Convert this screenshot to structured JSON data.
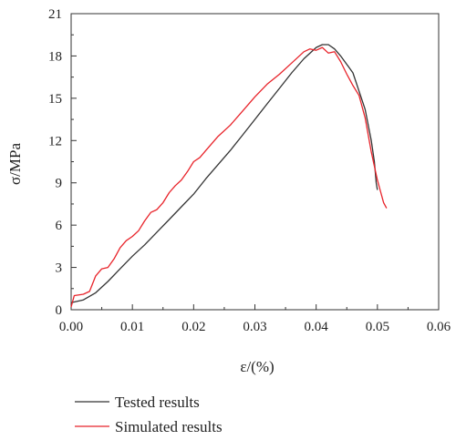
{
  "chart_data": {
    "type": "line",
    "title": "",
    "xlabel": "ε/(%)",
    "ylabel": "σ/MPa",
    "xlim": [
      0,
      0.06
    ],
    "ylim": [
      0,
      21
    ],
    "x_ticks": [
      0.0,
      0.01,
      0.02,
      0.03,
      0.04,
      0.05,
      0.06
    ],
    "x_tick_labels": [
      "0.00",
      "0.01",
      "0.02",
      "0.03",
      "0.04",
      "0.05",
      "0.06"
    ],
    "y_ticks": [
      0,
      3,
      6,
      9,
      12,
      15,
      18,
      21
    ],
    "y_tick_labels": [
      "0",
      "3",
      "6",
      "9",
      "12",
      "15",
      "18",
      "21"
    ],
    "grid": false,
    "legend_position": "bottom-left, below plot",
    "series": [
      {
        "name": "Tested results",
        "color": "#333333",
        "points": [
          [
            0.0,
            0.5
          ],
          [
            0.002,
            0.7
          ],
          [
            0.004,
            1.2
          ],
          [
            0.006,
            2.0
          ],
          [
            0.008,
            2.9
          ],
          [
            0.01,
            3.8
          ],
          [
            0.012,
            4.6
          ],
          [
            0.014,
            5.5
          ],
          [
            0.016,
            6.4
          ],
          [
            0.018,
            7.3
          ],
          [
            0.02,
            8.2
          ],
          [
            0.022,
            9.3
          ],
          [
            0.024,
            10.3
          ],
          [
            0.026,
            11.3
          ],
          [
            0.028,
            12.4
          ],
          [
            0.03,
            13.5
          ],
          [
            0.032,
            14.6
          ],
          [
            0.034,
            15.7
          ],
          [
            0.036,
            16.8
          ],
          [
            0.038,
            17.8
          ],
          [
            0.04,
            18.6
          ],
          [
            0.041,
            18.8
          ],
          [
            0.042,
            18.8
          ],
          [
            0.043,
            18.5
          ],
          [
            0.044,
            18.0
          ],
          [
            0.045,
            17.4
          ],
          [
            0.046,
            16.8
          ],
          [
            0.047,
            15.5
          ],
          [
            0.048,
            14.2
          ],
          [
            0.049,
            12.0
          ],
          [
            0.0495,
            10.5
          ],
          [
            0.0498,
            9.0
          ],
          [
            0.05,
            8.5
          ]
        ]
      },
      {
        "name": "Simulated results",
        "color": "#e8232a",
        "points": [
          [
            0.0,
            0.2
          ],
          [
            0.0005,
            1.0
          ],
          [
            0.002,
            1.1
          ],
          [
            0.003,
            1.3
          ],
          [
            0.004,
            2.4
          ],
          [
            0.005,
            2.9
          ],
          [
            0.006,
            3.0
          ],
          [
            0.007,
            3.6
          ],
          [
            0.008,
            4.4
          ],
          [
            0.009,
            4.9
          ],
          [
            0.01,
            5.2
          ],
          [
            0.011,
            5.6
          ],
          [
            0.012,
            6.3
          ],
          [
            0.013,
            6.9
          ],
          [
            0.014,
            7.1
          ],
          [
            0.015,
            7.6
          ],
          [
            0.016,
            8.3
          ],
          [
            0.017,
            8.8
          ],
          [
            0.018,
            9.2
          ],
          [
            0.019,
            9.8
          ],
          [
            0.02,
            10.5
          ],
          [
            0.021,
            10.8
          ],
          [
            0.022,
            11.3
          ],
          [
            0.024,
            12.3
          ],
          [
            0.026,
            13.1
          ],
          [
            0.028,
            14.1
          ],
          [
            0.03,
            15.1
          ],
          [
            0.032,
            16.0
          ],
          [
            0.034,
            16.7
          ],
          [
            0.036,
            17.5
          ],
          [
            0.038,
            18.3
          ],
          [
            0.039,
            18.5
          ],
          [
            0.04,
            18.4
          ],
          [
            0.041,
            18.6
          ],
          [
            0.042,
            18.2
          ],
          [
            0.043,
            18.3
          ],
          [
            0.044,
            17.6
          ],
          [
            0.045,
            16.7
          ],
          [
            0.046,
            15.9
          ],
          [
            0.047,
            15.2
          ],
          [
            0.048,
            13.6
          ],
          [
            0.049,
            11.2
          ],
          [
            0.05,
            9.2
          ],
          [
            0.0505,
            8.4
          ],
          [
            0.051,
            7.6
          ],
          [
            0.0515,
            7.2
          ]
        ]
      }
    ]
  }
}
